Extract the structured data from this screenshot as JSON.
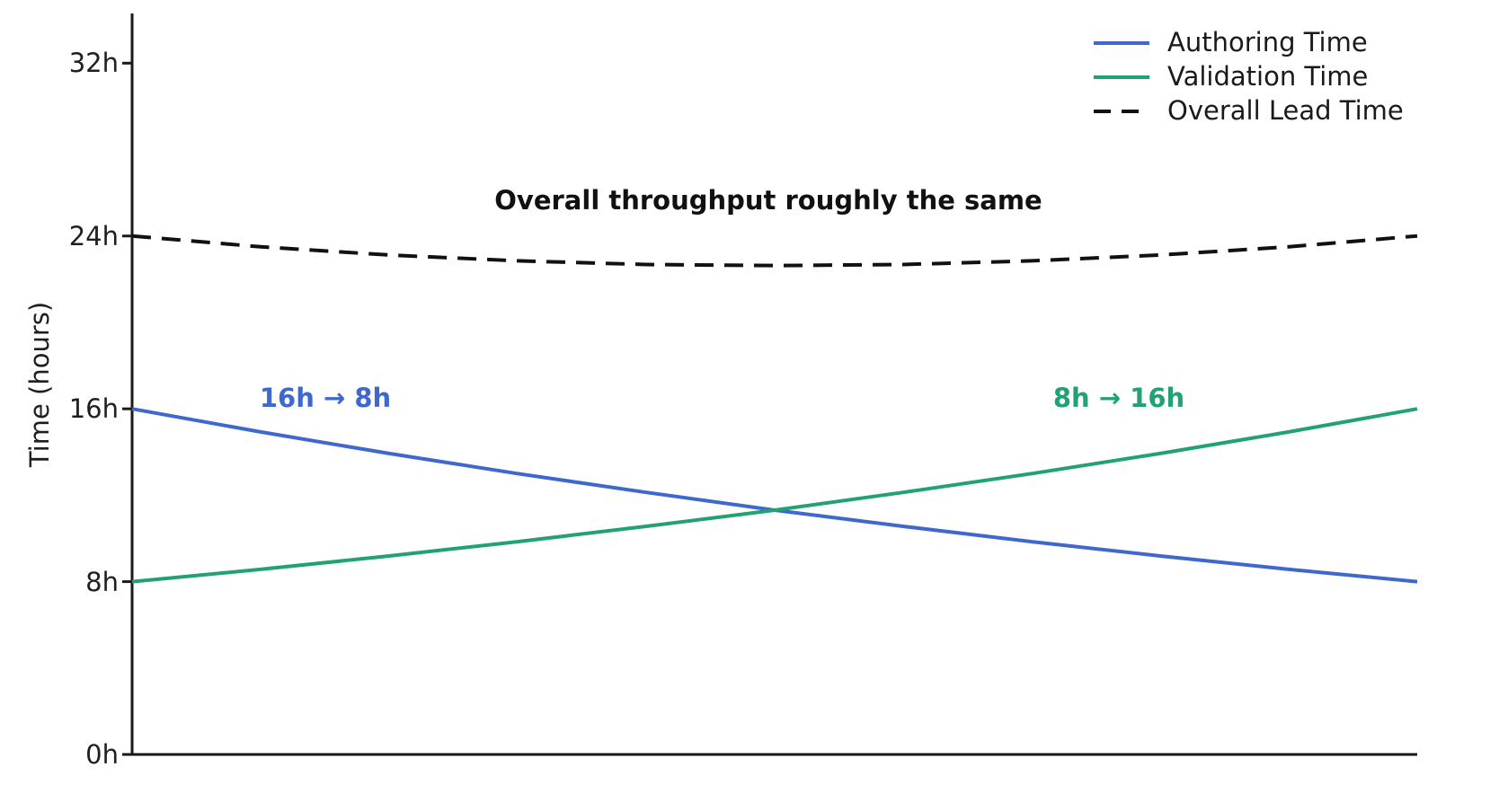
{
  "figure": {
    "background": "#ffffff",
    "axis_color": "#1a1a1a",
    "annotations": {
      "overall": {
        "text": "Overall throughput roughly the same",
        "color": "#111111"
      },
      "authoring": {
        "text": "16h → 8h",
        "color": "#3e68ce"
      },
      "validation": {
        "text": "8h → 16h",
        "color": "#22a273"
      }
    },
    "legend": [
      {
        "label": "Authoring Time",
        "color": "#3e68ce",
        "style": "solid"
      },
      {
        "label": "Validation Time",
        "color": "#22a273",
        "style": "solid"
      },
      {
        "label": "Overall Lead Time",
        "color": "#111111",
        "style": "dashed"
      }
    ]
  },
  "chart_data": {
    "type": "line",
    "title": "",
    "xlabel": "",
    "ylabel": "Time (hours)",
    "grid": false,
    "legend_position": "upper right",
    "xlim": [
      0,
      1
    ],
    "ylim": [
      0,
      34.3
    ],
    "x": [
      0,
      0.1,
      0.2,
      0.3,
      0.4,
      0.5,
      0.6,
      0.7,
      0.8,
      0.9,
      1.0
    ],
    "series": [
      {
        "id": "authoring",
        "name": "Authoring Time",
        "color": "#3e68ce",
        "style": "solid",
        "values": [
          16,
          14.93,
          13.93,
          13.0,
          12.13,
          11.31,
          10.56,
          9.85,
          9.19,
          8.57,
          8.0
        ]
      },
      {
        "id": "validation",
        "name": "Validation Time",
        "color": "#22a273",
        "style": "solid",
        "values": [
          8.0,
          8.57,
          9.19,
          9.85,
          10.56,
          11.31,
          12.13,
          13.0,
          13.93,
          14.93,
          16.0
        ]
      },
      {
        "id": "overall-lead",
        "name": "Overall Lead Time",
        "color": "#111111",
        "style": "dashed",
        "values": [
          24.0,
          23.5,
          23.12,
          22.85,
          22.68,
          22.63,
          22.68,
          22.85,
          23.12,
          23.5,
          24.0
        ]
      }
    ],
    "yticks": [
      {
        "value": 0,
        "label": "0h"
      },
      {
        "value": 8,
        "label": "8h"
      },
      {
        "value": 16,
        "label": "16h"
      },
      {
        "value": 24,
        "label": "24h"
      },
      {
        "value": 32,
        "label": "32h"
      }
    ],
    "annotations": [
      {
        "text": "Overall throughput roughly the same",
        "series": "overall-lead"
      },
      {
        "text": "16h → 8h",
        "series": "authoring"
      },
      {
        "text": "8h → 16h",
        "series": "validation"
      }
    ]
  }
}
